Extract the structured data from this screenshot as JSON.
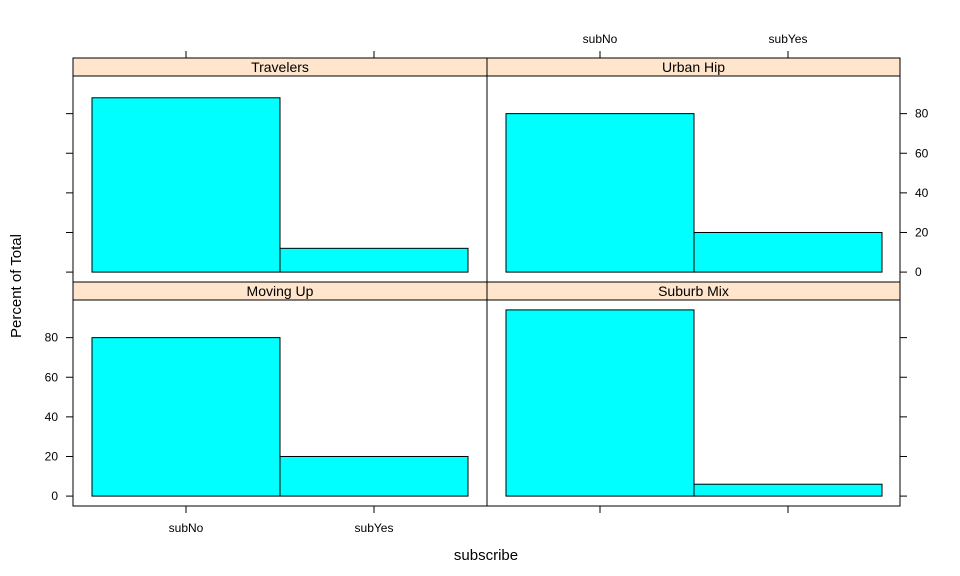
{
  "chart_data": {
    "type": "bar",
    "xlabel": "subscribe",
    "ylabel": "Percent of Total",
    "categories": [
      "subNo",
      "subYes"
    ],
    "ylim": [
      -5,
      99
    ],
    "y_ticks": [
      0,
      20,
      40,
      60,
      80
    ],
    "grid": false,
    "bar_color": "#00ffff",
    "strip_color": "#ffe5cc",
    "panels": [
      {
        "name": "Travelers",
        "values": [
          88,
          12
        ]
      },
      {
        "name": "Urban Hip",
        "values": [
          80,
          20
        ]
      },
      {
        "name": "Moving Up",
        "values": [
          80,
          20
        ]
      },
      {
        "name": "Suburb Mix",
        "values": [
          94,
          6
        ]
      }
    ]
  }
}
